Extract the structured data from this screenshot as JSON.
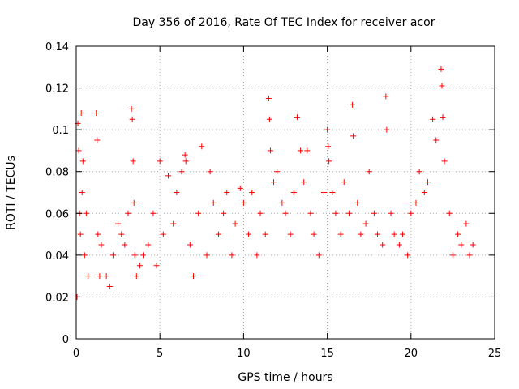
{
  "chart_data": {
    "type": "scatter",
    "title": "Day 356 of 2016, Rate Of TEC Index for receiver acor",
    "xlabel": "GPS time / hours",
    "ylabel": "ROTI / TECUs",
    "xlim": [
      0,
      25
    ],
    "ylim": [
      0,
      0.14
    ],
    "xticks": [
      0,
      5,
      10,
      15,
      20,
      25
    ],
    "yticks": [
      0,
      0.02,
      0.04,
      0.06,
      0.08,
      0.1,
      0.12,
      0.14
    ],
    "xtick_labels": [
      "0",
      "5",
      "10",
      "15",
      "20",
      "25"
    ],
    "ytick_labels": [
      "0",
      "0.02",
      "0.04",
      "0.06",
      "0.08",
      "0.1",
      "0.12",
      "0.14"
    ],
    "grid": true,
    "marker": "+",
    "color": "#ff0000",
    "series": [
      {
        "x": [
          0.05,
          0.1,
          0.15,
          0.2,
          0.25,
          0.3,
          0.35,
          0.4,
          0.5,
          0.6,
          0.7,
          1.2,
          1.25,
          1.3,
          1.4,
          1.5,
          1.8,
          2.0,
          2.2,
          2.5,
          2.7,
          2.9,
          3.1,
          3.3,
          3.35,
          3.4,
          3.45,
          3.5,
          3.6,
          3.8,
          4.0,
          4.3,
          4.6,
          4.8,
          5.0,
          5.2,
          5.5,
          5.8,
          6.0,
          6.3,
          6.5,
          6.55,
          6.8,
          7.0,
          7.3,
          7.5,
          7.8,
          8.0,
          8.2,
          8.5,
          8.8,
          9.0,
          9.3,
          9.5,
          9.8,
          10.0,
          10.3,
          10.5,
          10.8,
          11.0,
          11.3,
          11.5,
          11.55,
          11.6,
          11.8,
          12.0,
          12.3,
          12.5,
          12.8,
          13.0,
          13.2,
          13.4,
          13.6,
          13.8,
          14.0,
          14.2,
          14.5,
          14.8,
          15.0,
          15.05,
          15.1,
          15.3,
          15.5,
          15.8,
          16.0,
          16.3,
          16.5,
          16.55,
          16.8,
          17.0,
          17.3,
          17.5,
          17.8,
          18.0,
          18.3,
          18.5,
          18.55,
          18.8,
          19.0,
          19.3,
          19.5,
          19.8,
          20.0,
          20.3,
          20.5,
          20.8,
          21.0,
          21.3,
          21.5,
          21.8,
          21.85,
          21.9,
          22.0,
          22.3,
          22.5,
          22.8,
          23.0,
          23.3,
          23.5,
          23.7
        ],
        "y": [
          0.02,
          0.103,
          0.09,
          0.06,
          0.05,
          0.108,
          0.07,
          0.085,
          0.04,
          0.06,
          0.03,
          0.108,
          0.095,
          0.05,
          0.03,
          0.045,
          0.03,
          0.025,
          0.04,
          0.055,
          0.05,
          0.045,
          0.06,
          0.11,
          0.105,
          0.085,
          0.065,
          0.04,
          0.03,
          0.035,
          0.04,
          0.045,
          0.06,
          0.035,
          0.085,
          0.05,
          0.078,
          0.055,
          0.07,
          0.08,
          0.088,
          0.085,
          0.045,
          0.03,
          0.06,
          0.092,
          0.04,
          0.08,
          0.065,
          0.05,
          0.06,
          0.07,
          0.04,
          0.055,
          0.072,
          0.065,
          0.05,
          0.07,
          0.04,
          0.06,
          0.05,
          0.115,
          0.105,
          0.09,
          0.075,
          0.08,
          0.065,
          0.06,
          0.05,
          0.07,
          0.106,
          0.09,
          0.075,
          0.09,
          0.06,
          0.05,
          0.04,
          0.07,
          0.1,
          0.092,
          0.085,
          0.07,
          0.06,
          0.05,
          0.075,
          0.06,
          0.112,
          0.097,
          0.065,
          0.05,
          0.055,
          0.08,
          0.06,
          0.05,
          0.045,
          0.116,
          0.1,
          0.06,
          0.05,
          0.045,
          0.05,
          0.04,
          0.06,
          0.065,
          0.08,
          0.07,
          0.075,
          0.105,
          0.095,
          0.129,
          0.121,
          0.106,
          0.085,
          0.06,
          0.04,
          0.05,
          0.045,
          0.055,
          0.04,
          0.045
        ]
      }
    ]
  }
}
